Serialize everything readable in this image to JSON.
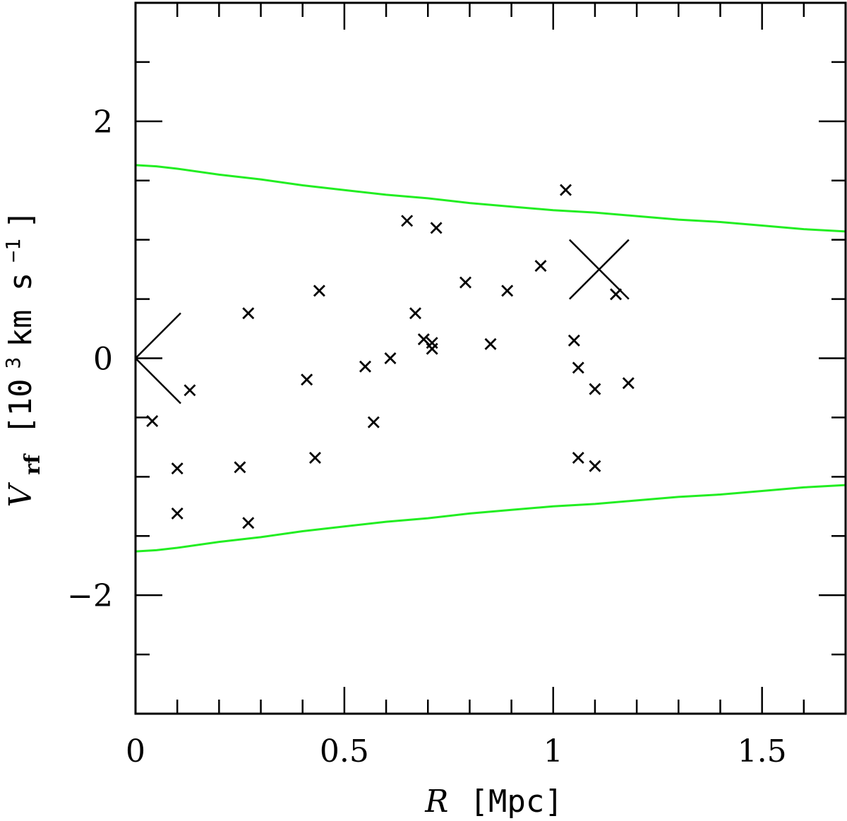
{
  "chart_data": {
    "type": "scatter",
    "title": "",
    "xlabel": {
      "symbol": "R",
      "unit": "[Mpc]"
    },
    "ylabel": {
      "symbol": "V",
      "subscript": "rf",
      "unit_prefix": "[10",
      "unit_exp": "3",
      "unit_mid": " km s",
      "unit_exp2": "−1",
      "unit_suffix": "]"
    },
    "xlim": [
      0,
      1.7
    ],
    "ylim": [
      -3,
      3
    ],
    "x_major_ticks": [
      0,
      0.5,
      1,
      1.5
    ],
    "x_minor_step": 0.1,
    "y_major_ticks": [
      -2,
      0,
      2
    ],
    "y_minor_step": 0.5,
    "x_tick_labels": [
      "0",
      "0.5",
      "1",
      "1.5"
    ],
    "y_tick_labels": [
      "−2",
      "0",
      "2"
    ],
    "points": [
      {
        "x": 0.04,
        "y": -0.53
      },
      {
        "x": 0.1,
        "y": -0.93
      },
      {
        "x": 0.1,
        "y": -1.31
      },
      {
        "x": 0.13,
        "y": -0.27
      },
      {
        "x": 0.25,
        "y": -0.92
      },
      {
        "x": 0.27,
        "y": 0.38
      },
      {
        "x": 0.27,
        "y": -1.39
      },
      {
        "x": 0.41,
        "y": -0.18
      },
      {
        "x": 0.43,
        "y": -0.84
      },
      {
        "x": 0.44,
        "y": 0.57
      },
      {
        "x": 0.55,
        "y": -0.07
      },
      {
        "x": 0.57,
        "y": -0.54
      },
      {
        "x": 0.61,
        "y": 0.0
      },
      {
        "x": 0.65,
        "y": 1.16
      },
      {
        "x": 0.67,
        "y": 0.38
      },
      {
        "x": 0.69,
        "y": 0.16
      },
      {
        "x": 0.71,
        "y": 0.13
      },
      {
        "x": 0.71,
        "y": 0.08
      },
      {
        "x": 0.72,
        "y": 1.1
      },
      {
        "x": 0.79,
        "y": 0.64
      },
      {
        "x": 0.85,
        "y": 0.12
      },
      {
        "x": 0.89,
        "y": 0.57
      },
      {
        "x": 0.97,
        "y": 0.78
      },
      {
        "x": 1.03,
        "y": 1.42
      },
      {
        "x": 1.05,
        "y": 0.15
      },
      {
        "x": 1.06,
        "y": -0.08
      },
      {
        "x": 1.06,
        "y": -0.84
      },
      {
        "x": 1.1,
        "y": -0.26
      },
      {
        "x": 1.1,
        "y": -0.91
      },
      {
        "x": 1.15,
        "y": 0.54
      },
      {
        "x": 1.18,
        "y": -0.21
      }
    ],
    "big_marker": {
      "x": 1.11,
      "y": 0.75
    },
    "origin_marker": {
      "x": 0.0,
      "y": 0.0
    },
    "envelope": {
      "x": [
        0,
        0.05,
        0.1,
        0.2,
        0.3,
        0.4,
        0.5,
        0.6,
        0.7,
        0.8,
        0.9,
        1.0,
        1.1,
        1.2,
        1.3,
        1.4,
        1.5,
        1.6,
        1.7
      ],
      "upper": [
        1.63,
        1.62,
        1.6,
        1.55,
        1.51,
        1.46,
        1.42,
        1.38,
        1.35,
        1.31,
        1.28,
        1.25,
        1.23,
        1.2,
        1.17,
        1.15,
        1.12,
        1.09,
        1.07
      ],
      "lower": [
        -1.63,
        -1.62,
        -1.6,
        -1.55,
        -1.51,
        -1.46,
        -1.42,
        -1.38,
        -1.35,
        -1.31,
        -1.28,
        -1.25,
        -1.23,
        -1.2,
        -1.17,
        -1.15,
        -1.12,
        -1.09,
        -1.07
      ],
      "color": "#22ee22"
    },
    "marker_color": "#000000",
    "grid": false
  }
}
